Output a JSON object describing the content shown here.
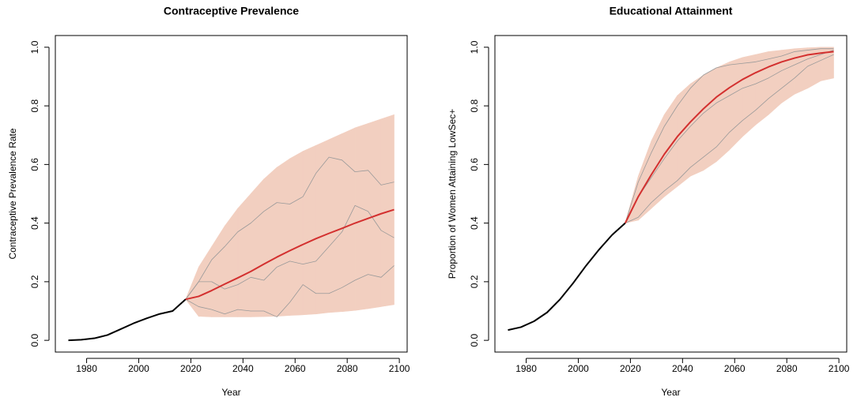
{
  "chart_data": [
    {
      "type": "line",
      "title": "Contraceptive Prevalence",
      "xlabel": "Year",
      "ylabel": "Contraceptive Prevalence Rate",
      "x": [
        1973,
        1978,
        1983,
        1988,
        1993,
        1998,
        2003,
        2008,
        2013,
        2018,
        2023,
        2028,
        2033,
        2038,
        2043,
        2048,
        2053,
        2058,
        2063,
        2068,
        2073,
        2078,
        2083,
        2088,
        2093,
        2098
      ],
      "xlim": [
        1968,
        2103
      ],
      "ylim": [
        -0.04,
        1.04
      ],
      "xticks": [
        1980,
        2000,
        2020,
        2040,
        2060,
        2080,
        2100
      ],
      "yticks": [
        {
          "value": 0,
          "label": "0.0"
        },
        0.2,
        0.4,
        0.6,
        0.8,
        {
          "value": 1,
          "label": "1.0"
        }
      ],
      "band": {
        "color": "#f2cfc0",
        "upper": [
          null,
          null,
          null,
          null,
          null,
          null,
          null,
          null,
          null,
          0.14,
          0.25,
          0.32,
          0.39,
          0.45,
          0.5,
          0.55,
          0.59,
          0.62,
          0.645,
          0.665,
          0.685,
          0.705,
          0.725,
          0.74,
          0.755,
          0.77
        ],
        "lower": [
          null,
          null,
          null,
          null,
          null,
          null,
          null,
          null,
          null,
          0.14,
          0.082,
          0.08,
          0.08,
          0.08,
          0.08,
          0.081,
          0.082,
          0.085,
          0.087,
          0.09,
          0.095,
          0.098,
          0.102,
          0.108,
          0.115,
          0.122
        ]
      },
      "series": [
        {
          "color": "#999999",
          "values": [
            null,
            null,
            null,
            null,
            null,
            null,
            null,
            null,
            null,
            0.14,
            0.2,
            0.275,
            0.32,
            0.37,
            0.4,
            0.44,
            0.47,
            0.465,
            0.49,
            0.57,
            0.625,
            0.615,
            0.575,
            0.58,
            0.53,
            0.54
          ]
        },
        {
          "color": "#999999",
          "values": [
            null,
            null,
            null,
            null,
            null,
            null,
            null,
            null,
            null,
            0.14,
            0.2,
            0.2,
            0.175,
            0.19,
            0.215,
            0.205,
            0.25,
            0.27,
            0.26,
            0.27,
            0.32,
            0.37,
            0.46,
            0.44,
            0.375,
            0.35
          ]
        },
        {
          "color": "#999999",
          "values": [
            null,
            null,
            null,
            null,
            null,
            null,
            null,
            null,
            null,
            0.14,
            0.115,
            0.105,
            0.09,
            0.105,
            0.1,
            0.1,
            0.08,
            0.13,
            0.19,
            0.16,
            0.16,
            0.18,
            0.205,
            0.225,
            0.215,
            0.255
          ]
        },
        {
          "color": "#000000",
          "values": [
            0.0,
            0.002,
            0.007,
            0.018,
            0.038,
            0.058,
            0.075,
            0.09,
            0.1,
            0.14,
            null,
            null,
            null,
            null,
            null,
            null,
            null,
            null,
            null,
            null,
            null,
            null,
            null,
            null,
            null,
            null
          ]
        },
        {
          "color": "#d3302f",
          "values": [
            null,
            null,
            null,
            null,
            null,
            null,
            null,
            null,
            null,
            0.14,
            0.15,
            0.17,
            0.192,
            0.213,
            0.235,
            0.26,
            0.284,
            0.306,
            0.327,
            0.347,
            0.365,
            0.382,
            0.4,
            0.416,
            0.432,
            0.446
          ]
        }
      ]
    },
    {
      "type": "line",
      "title": "Educational Attainment",
      "xlabel": "Year",
      "ylabel": "Proportion of Women Attaining LowSec+",
      "x": [
        1973,
        1978,
        1983,
        1988,
        1993,
        1998,
        2003,
        2008,
        2013,
        2018,
        2023,
        2028,
        2033,
        2038,
        2043,
        2048,
        2053,
        2058,
        2063,
        2068,
        2073,
        2078,
        2083,
        2088,
        2093,
        2098
      ],
      "xlim": [
        1968,
        2103
      ],
      "ylim": [
        -0.04,
        1.04
      ],
      "xticks": [
        1980,
        2000,
        2020,
        2040,
        2060,
        2080,
        2100
      ],
      "yticks": [
        {
          "value": 0,
          "label": "0.0"
        },
        0.2,
        0.4,
        0.6,
        0.8,
        {
          "value": 1,
          "label": "1.0"
        }
      ],
      "band": {
        "color": "#f2cfc0",
        "upper": [
          null,
          null,
          null,
          null,
          null,
          null,
          null,
          null,
          null,
          0.4,
          0.56,
          0.68,
          0.77,
          0.835,
          0.875,
          0.905,
          0.93,
          0.95,
          0.965,
          0.975,
          0.985,
          0.99,
          0.995,
          0.998,
          1.0,
          1.0
        ],
        "lower": [
          null,
          null,
          null,
          null,
          null,
          null,
          null,
          null,
          null,
          0.4,
          0.41,
          0.45,
          0.49,
          0.525,
          0.56,
          0.58,
          0.61,
          0.65,
          0.695,
          0.735,
          0.77,
          0.81,
          0.84,
          0.86,
          0.885,
          0.895
        ]
      },
      "series": [
        {
          "color": "#999999",
          "values": [
            null,
            null,
            null,
            null,
            null,
            null,
            null,
            null,
            null,
            0.4,
            0.54,
            0.64,
            0.73,
            0.8,
            0.86,
            0.905,
            0.93,
            0.94,
            0.945,
            0.95,
            0.96,
            0.97,
            0.985,
            0.99,
            0.995,
            0.995
          ]
        },
        {
          "color": "#999999",
          "values": [
            null,
            null,
            null,
            null,
            null,
            null,
            null,
            null,
            null,
            0.4,
            0.49,
            0.555,
            0.62,
            0.68,
            0.73,
            0.775,
            0.81,
            0.835,
            0.86,
            0.875,
            0.895,
            0.92,
            0.94,
            0.96,
            0.975,
            0.99
          ]
        },
        {
          "color": "#999999",
          "values": [
            null,
            null,
            null,
            null,
            null,
            null,
            null,
            null,
            null,
            0.4,
            0.42,
            0.47,
            0.51,
            0.545,
            0.59,
            0.625,
            0.66,
            0.71,
            0.75,
            0.785,
            0.825,
            0.86,
            0.895,
            0.935,
            0.955,
            0.975
          ]
        },
        {
          "color": "#000000",
          "values": [
            0.035,
            0.045,
            0.065,
            0.095,
            0.14,
            0.195,
            0.255,
            0.31,
            0.36,
            0.4,
            null,
            null,
            null,
            null,
            null,
            null,
            null,
            null,
            null,
            null,
            null,
            null,
            null,
            null,
            null,
            null
          ]
        },
        {
          "color": "#d3302f",
          "values": [
            null,
            null,
            null,
            null,
            null,
            null,
            null,
            null,
            null,
            0.4,
            0.49,
            0.565,
            0.635,
            0.695,
            0.745,
            0.79,
            0.83,
            0.862,
            0.89,
            0.913,
            0.933,
            0.95,
            0.963,
            0.974,
            0.98,
            0.985
          ]
        }
      ]
    }
  ]
}
